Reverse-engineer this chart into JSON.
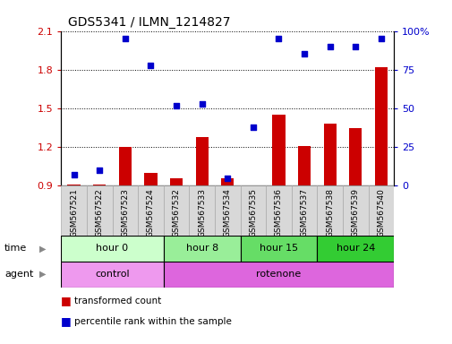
{
  "title": "GDS5341 / ILMN_1214827",
  "samples": [
    "GSM567521",
    "GSM567522",
    "GSM567523",
    "GSM567524",
    "GSM567532",
    "GSM567533",
    "GSM567534",
    "GSM567535",
    "GSM567536",
    "GSM567537",
    "GSM567538",
    "GSM567539",
    "GSM567540"
  ],
  "red_values": [
    0.91,
    0.91,
    1.2,
    1.0,
    0.96,
    1.28,
    0.96,
    0.89,
    1.45,
    1.21,
    1.38,
    1.35,
    1.82
  ],
  "blue_values": [
    7,
    10,
    95,
    78,
    52,
    53,
    5,
    38,
    95,
    85,
    90,
    90,
    95
  ],
  "ylim_left": [
    0.9,
    2.1
  ],
  "ylim_right": [
    0,
    100
  ],
  "yticks_left": [
    0.9,
    1.2,
    1.5,
    1.8,
    2.1
  ],
  "yticks_right": [
    0,
    25,
    50,
    75,
    100
  ],
  "time_groups": [
    {
      "label": "hour 0",
      "start": 0,
      "end": 4,
      "color": "#ccffcc"
    },
    {
      "label": "hour 8",
      "start": 4,
      "end": 7,
      "color": "#99ee99"
    },
    {
      "label": "hour 15",
      "start": 7,
      "end": 10,
      "color": "#66dd66"
    },
    {
      "label": "hour 24",
      "start": 10,
      "end": 13,
      "color": "#33cc33"
    }
  ],
  "agent_groups": [
    {
      "label": "control",
      "start": 0,
      "end": 4,
      "color": "#ee99ee"
    },
    {
      "label": "rotenone",
      "start": 4,
      "end": 13,
      "color": "#dd66dd"
    }
  ],
  "bar_color": "#cc0000",
  "dot_color": "#0000cc",
  "bar_bottom": 0.9,
  "legend_red": "transformed count",
  "legend_blue": "percentile rank within the sample",
  "fig_width": 5.06,
  "fig_height": 3.84,
  "dpi": 100
}
